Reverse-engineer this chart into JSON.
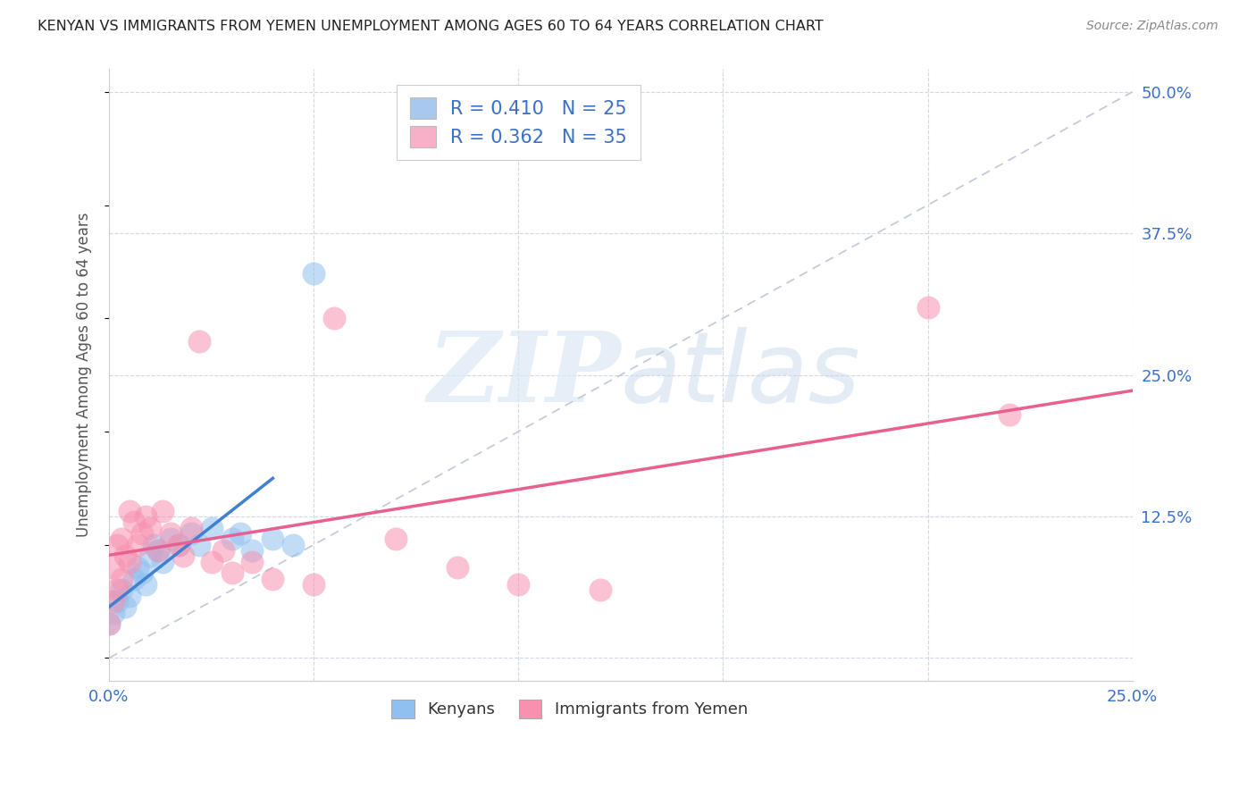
{
  "title": "KENYAN VS IMMIGRANTS FROM YEMEN UNEMPLOYMENT AMONG AGES 60 TO 64 YEARS CORRELATION CHART",
  "source": "Source: ZipAtlas.com",
  "ylabel_label": "Unemployment Among Ages 60 to 64 years",
  "legend_entries": [
    {
      "label": "R = 0.410   N = 25",
      "color": "#a8c8f0"
    },
    {
      "label": "R = 0.362   N = 35",
      "color": "#f8b0c8"
    }
  ],
  "kenyans_color": "#90c0f0",
  "immigrants_color": "#f890b0",
  "trend_kenyan_color": "#4080d0",
  "trend_immigrant_color": "#e86090",
  "diagonal_color": "#c0c8d8",
  "kenyans_x": [
    0.0,
    0.001,
    0.002,
    0.003,
    0.004,
    0.005,
    0.006,
    0.007,
    0.008,
    0.009,
    0.01,
    0.011,
    0.012,
    0.013,
    0.015,
    0.017,
    0.02,
    0.022,
    0.025,
    0.03,
    0.032,
    0.035,
    0.04,
    0.045,
    0.05
  ],
  "kenyans_y": [
    0.03,
    0.04,
    0.05,
    0.06,
    0.045,
    0.055,
    0.07,
    0.08,
    0.075,
    0.065,
    0.09,
    0.1,
    0.095,
    0.085,
    0.105,
    0.1,
    0.11,
    0.1,
    0.115,
    0.105,
    0.11,
    0.095,
    0.105,
    0.1,
    0.34
  ],
  "immigrants_x": [
    0.0,
    0.001,
    0.001,
    0.002,
    0.002,
    0.003,
    0.003,
    0.004,
    0.005,
    0.005,
    0.006,
    0.007,
    0.008,
    0.009,
    0.01,
    0.012,
    0.013,
    0.015,
    0.017,
    0.018,
    0.02,
    0.022,
    0.025,
    0.028,
    0.03,
    0.035,
    0.04,
    0.05,
    0.055,
    0.07,
    0.085,
    0.1,
    0.12,
    0.2,
    0.22
  ],
  "immigrants_y": [
    0.03,
    0.05,
    0.08,
    0.06,
    0.1,
    0.07,
    0.105,
    0.09,
    0.085,
    0.13,
    0.12,
    0.1,
    0.11,
    0.125,
    0.115,
    0.095,
    0.13,
    0.11,
    0.1,
    0.09,
    0.115,
    0.28,
    0.085,
    0.095,
    0.075,
    0.085,
    0.07,
    0.065,
    0.3,
    0.105,
    0.08,
    0.065,
    0.06,
    0.31,
    0.215
  ],
  "xlim": [
    0.0,
    0.25
  ],
  "ylim": [
    -0.02,
    0.52
  ],
  "background_color": "#ffffff"
}
